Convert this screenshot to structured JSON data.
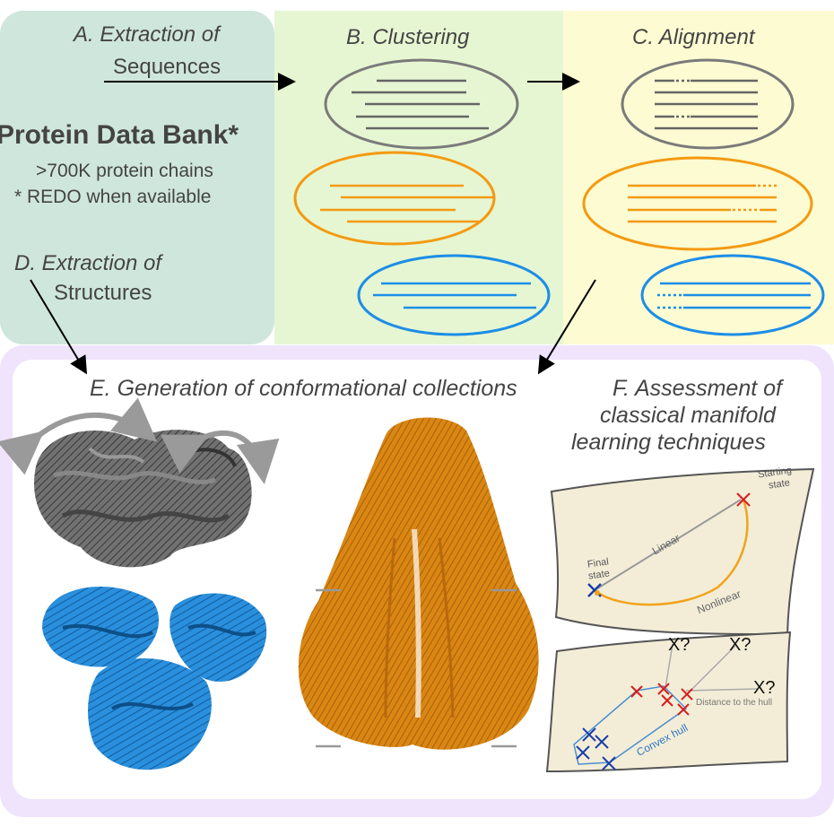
{
  "sections": {
    "a_title": "A. Extraction of",
    "a_sub": "Sequences",
    "b_title": "B. Clustering",
    "c_title": "C. Alignment",
    "d_title": "D. Extraction of",
    "d_sub": "Structures",
    "e_title": "E. Generation of conformational collections",
    "f_line1": "F. Assessment of",
    "f_line2": "classical manifold",
    "f_line3": "learning techniques"
  },
  "source": {
    "name": "Protein Data Bank*",
    "count": ">700K protein chains",
    "note": "* REDO when available"
  },
  "manifold_top": {
    "starting": "Starting",
    "state": "state",
    "final": "Final",
    "final_state": "state",
    "linear": "Linear",
    "nonlinear": "Nonlinear"
  },
  "manifold_bottom": {
    "q1": "X?",
    "q2": "X?",
    "q3": "X?",
    "distance": "Distance to the hull",
    "hull": "Convex hull"
  },
  "colors": {
    "teal_panel": "#cfe6dc",
    "green_panel": "#e6f6d2",
    "yellow_panel": "#fdfbd2",
    "purple_panel": "#efe4fb",
    "gray_cluster": "#7a7a7a",
    "orange_cluster": "#f39a12",
    "blue_cluster": "#1c8ee6"
  }
}
